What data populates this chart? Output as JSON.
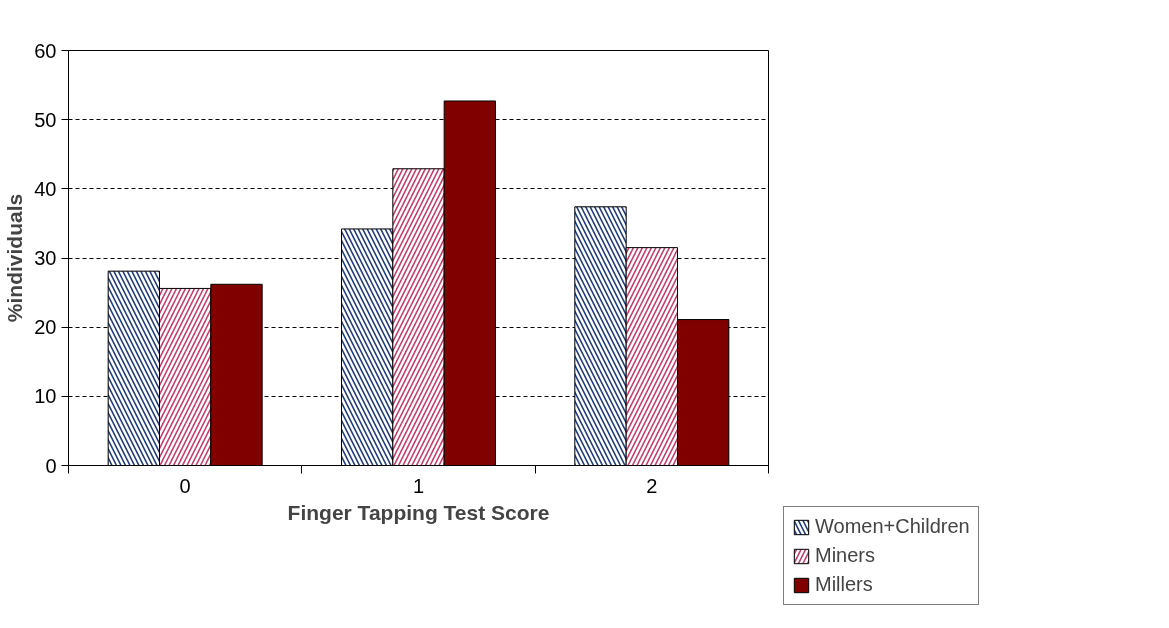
{
  "chart_data": {
    "type": "bar",
    "xlabel": "Finger Tapping Test Score",
    "ylabel": "%individuals",
    "categories": [
      "0",
      "1",
      "2"
    ],
    "series": [
      {
        "name": "Women+Children",
        "color": "#1f3a7a",
        "values": [
          28.1,
          34.2,
          37.4
        ]
      },
      {
        "name": "Miners",
        "color": "#c0406a",
        "values": [
          25.6,
          42.9,
          31.5
        ]
      },
      {
        "name": "Millers",
        "color": "#800000",
        "values": [
          26.2,
          52.7,
          21.1
        ]
      }
    ],
    "ylim": [
      0,
      60
    ],
    "yticks": [
      0,
      10,
      20,
      30,
      40,
      50,
      60
    ],
    "grid": "y",
    "legend": "right"
  }
}
